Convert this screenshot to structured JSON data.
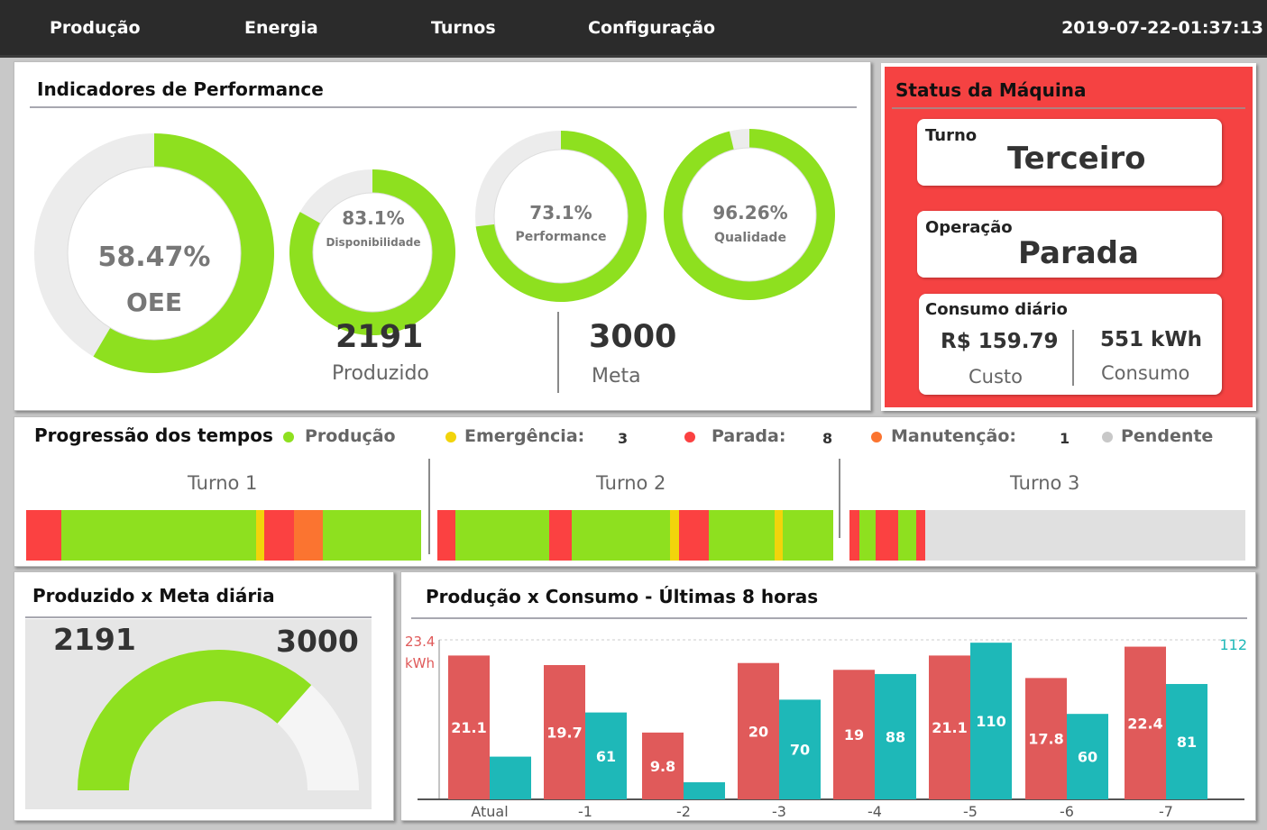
{
  "nav": {
    "items": [
      "Produção",
      "Energia",
      "Turnos",
      "Configuração"
    ],
    "clock": "2019-07-22-01:37:13"
  },
  "colors": {
    "green": "#8ee01f",
    "ring_track": "#ececec",
    "status_bg": "#f54242",
    "yellow": "#f2d40b",
    "red": "#fb4141",
    "orange": "#fb7430",
    "gray": "#c8c8c8",
    "bar_red": "#e05a5a",
    "bar_teal": "#1eb8b8"
  },
  "performance": {
    "title": "Indicadores de Performance",
    "oee": {
      "value_text": "58.47%",
      "label": "OEE",
      "fraction": 0.5847
    },
    "gauges": [
      {
        "value_text": "83.1%",
        "label": "Disponibilidade",
        "fraction": 0.831
      },
      {
        "value_text": "73.1%",
        "label": "Performance",
        "fraction": 0.731
      },
      {
        "value_text": "96.26%",
        "label": "Qualidade",
        "fraction": 0.9626
      }
    ],
    "produced": {
      "value": "2191",
      "label": "Produzido"
    },
    "goal": {
      "value": "3000",
      "label": "Meta"
    }
  },
  "status": {
    "title": "Status da Máquina",
    "turno": {
      "label": "Turno",
      "value": "Terceiro"
    },
    "operacao": {
      "label": "Operação",
      "value": "Parada"
    },
    "consumo": {
      "label": "Consumo diário",
      "custo_value": "R$ 159.79",
      "custo_label": "Custo",
      "consumo_value": "551 kWh",
      "consumo_label": "Consumo"
    }
  },
  "progress": {
    "title": "Progressão dos tempos",
    "legend": [
      {
        "label": "Produção",
        "color": "green",
        "count": ""
      },
      {
        "label": "Emergência:",
        "color": "yellow",
        "count": "3"
      },
      {
        "label": "Parada:",
        "color": "red",
        "count": "8"
      },
      {
        "label": "Manutenção:",
        "color": "orange",
        "count": "1"
      },
      {
        "label": "Pendente",
        "color": "gray",
        "count": ""
      }
    ],
    "shifts": [
      {
        "label": "Turno 1",
        "segments": [
          {
            "state": "red",
            "share": 0.088
          },
          {
            "state": "green",
            "share": 0.495
          },
          {
            "state": "yellow",
            "share": 0.02
          },
          {
            "state": "red",
            "share": 0.074
          },
          {
            "state": "orange",
            "share": 0.075
          },
          {
            "state": "green",
            "share": 0.248
          }
        ]
      },
      {
        "label": "Turno 2",
        "segments": [
          {
            "state": "red",
            "share": 0.046
          },
          {
            "state": "green",
            "share": 0.237
          },
          {
            "state": "red",
            "share": 0.058
          },
          {
            "state": "green",
            "share": 0.249
          },
          {
            "state": "yellow",
            "share": 0.021
          },
          {
            "state": "red",
            "share": 0.077
          },
          {
            "state": "green",
            "share": 0.166
          },
          {
            "state": "yellow",
            "share": 0.021
          },
          {
            "state": "green",
            "share": 0.125
          }
        ]
      },
      {
        "label": "Turno 3",
        "segments": [
          {
            "state": "red",
            "share": 0.025
          },
          {
            "state": "green",
            "share": 0.04
          },
          {
            "state": "red",
            "share": 0.057
          },
          {
            "state": "green",
            "share": 0.046
          },
          {
            "state": "red",
            "share": 0.024
          },
          {
            "state": "gray",
            "share": 0.808
          }
        ]
      }
    ]
  },
  "daily_goal": {
    "title": "Produzido x Meta diária",
    "produced": "2191",
    "goal": "3000",
    "fraction": 0.7303
  },
  "chart_data": {
    "type": "bar",
    "title": "Produção x Consumo - Últimas 8 horas",
    "categories": [
      "Atual",
      "-1",
      "-2",
      "-3",
      "-4",
      "-5",
      "-6",
      "-7"
    ],
    "left_axis": {
      "max_label": "23.4",
      "unit": "kWh",
      "max": 23.4
    },
    "right_axis": {
      "max_label": "112",
      "max": 112
    },
    "series": [
      {
        "axis": "left",
        "color": "#e05a5a",
        "values": [
          21.1,
          19.7,
          9.8,
          20,
          19,
          21.1,
          17.8,
          22.4
        ],
        "labels": [
          "21.1",
          "19.7",
          "9.8",
          "20",
          "19",
          "21.1",
          "17.8",
          "22.4"
        ]
      },
      {
        "axis": "right",
        "color": "#1eb8b8",
        "values": [
          30,
          61,
          12,
          70,
          88,
          110,
          60,
          81
        ],
        "labels": [
          "",
          "61",
          "",
          "70",
          "88",
          "110",
          "60",
          "81"
        ]
      }
    ]
  }
}
